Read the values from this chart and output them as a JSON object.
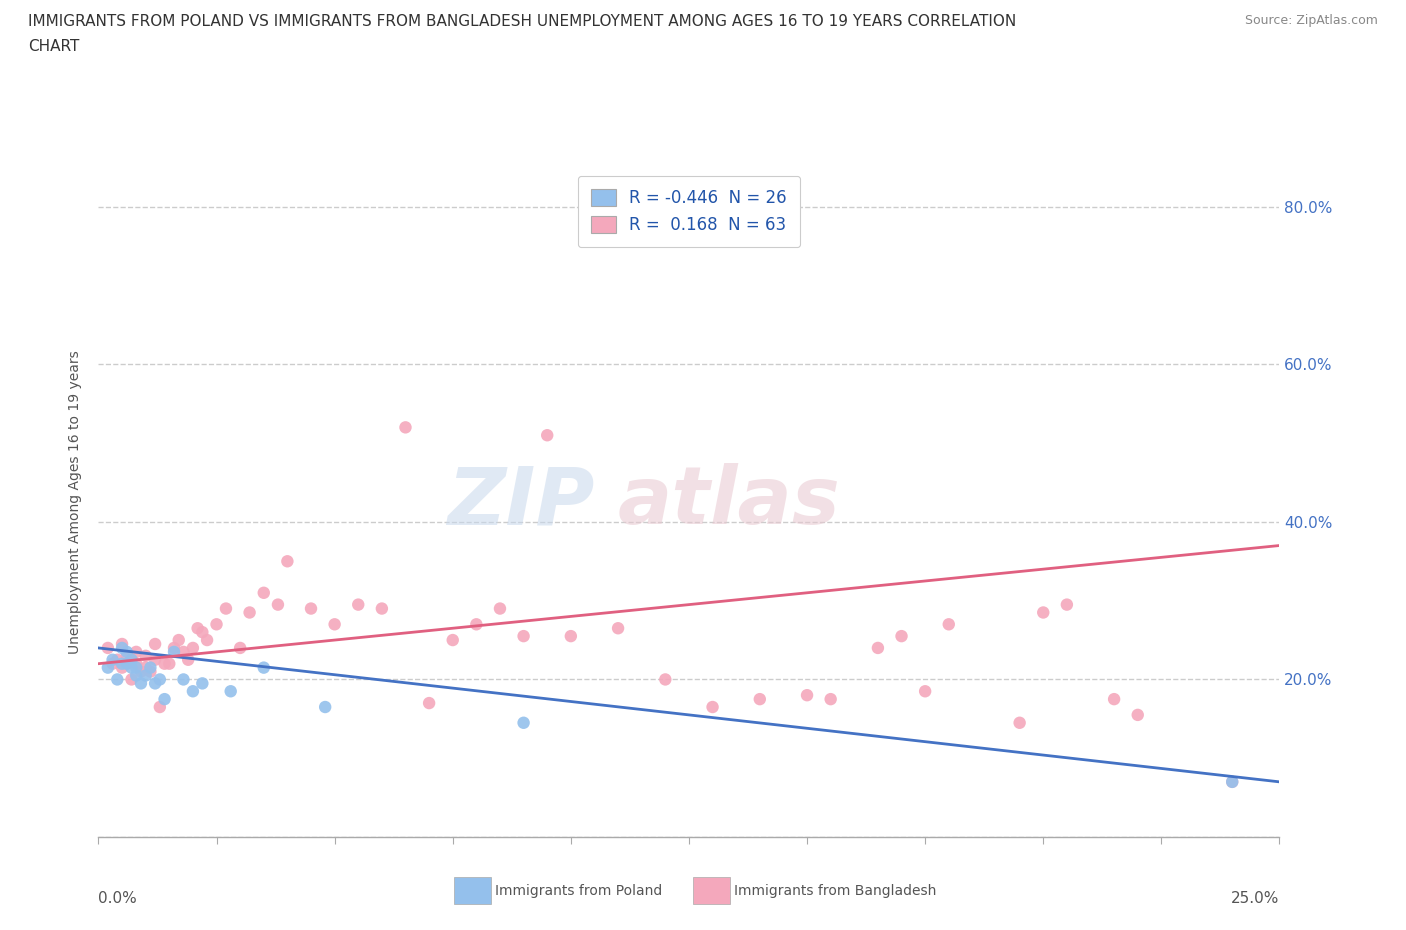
{
  "title_line1": "IMMIGRANTS FROM POLAND VS IMMIGRANTS FROM BANGLADESH UNEMPLOYMENT AMONG AGES 16 TO 19 YEARS CORRELATION",
  "title_line2": "CHART",
  "source_text": "Source: ZipAtlas.com",
  "ylabel": "Unemployment Among Ages 16 to 19 years",
  "xlim": [
    0.0,
    0.25
  ],
  "ylim": [
    0.0,
    0.85
  ],
  "xticks": [
    0.0,
    0.025,
    0.05,
    0.075,
    0.1,
    0.125,
    0.15,
    0.175,
    0.2,
    0.225,
    0.25
  ],
  "yticks": [
    0.0,
    0.2,
    0.4,
    0.6,
    0.8
  ],
  "yticklabels_right": [
    "",
    "20.0%",
    "40.0%",
    "60.0%",
    "80.0%"
  ],
  "grid_color": "#cccccc",
  "background_color": "#ffffff",
  "watermark_zip": "ZIP",
  "watermark_atlas": "atlas",
  "poland_color": "#94c0ec",
  "poland_color_line": "#4472c4",
  "bangladesh_color": "#f4a8bc",
  "bangladesh_color_line": "#e06080",
  "legend_label_poland": "R = -0.446  N = 26",
  "legend_label_bangladesh": "R =  0.168  N = 63",
  "bottom_label_poland": "Immigrants from Poland",
  "bottom_label_bangladesh": "Immigrants from Bangladesh",
  "poland_scatter_x": [
    0.002,
    0.003,
    0.004,
    0.005,
    0.005,
    0.006,
    0.006,
    0.007,
    0.007,
    0.008,
    0.008,
    0.009,
    0.01,
    0.011,
    0.012,
    0.013,
    0.014,
    0.016,
    0.018,
    0.02,
    0.022,
    0.028,
    0.035,
    0.048,
    0.09,
    0.24
  ],
  "poland_scatter_y": [
    0.215,
    0.225,
    0.2,
    0.22,
    0.24,
    0.22,
    0.235,
    0.215,
    0.225,
    0.215,
    0.205,
    0.195,
    0.205,
    0.215,
    0.195,
    0.2,
    0.175,
    0.235,
    0.2,
    0.185,
    0.195,
    0.185,
    0.215,
    0.165,
    0.145,
    0.07
  ],
  "bangladesh_scatter_x": [
    0.002,
    0.003,
    0.004,
    0.005,
    0.005,
    0.006,
    0.006,
    0.007,
    0.007,
    0.008,
    0.008,
    0.009,
    0.01,
    0.01,
    0.011,
    0.012,
    0.012,
    0.013,
    0.014,
    0.015,
    0.016,
    0.017,
    0.018,
    0.019,
    0.02,
    0.021,
    0.022,
    0.023,
    0.025,
    0.027,
    0.03,
    0.032,
    0.035,
    0.038,
    0.04,
    0.045,
    0.05,
    0.055,
    0.06,
    0.065,
    0.07,
    0.075,
    0.08,
    0.085,
    0.09,
    0.095,
    0.1,
    0.11,
    0.12,
    0.13,
    0.14,
    0.15,
    0.155,
    0.165,
    0.17,
    0.175,
    0.18,
    0.195,
    0.2,
    0.205,
    0.215,
    0.22,
    0.24
  ],
  "bangladesh_scatter_y": [
    0.24,
    0.22,
    0.225,
    0.215,
    0.245,
    0.22,
    0.23,
    0.225,
    0.2,
    0.22,
    0.235,
    0.21,
    0.23,
    0.215,
    0.21,
    0.225,
    0.245,
    0.165,
    0.22,
    0.22,
    0.24,
    0.25,
    0.235,
    0.225,
    0.24,
    0.265,
    0.26,
    0.25,
    0.27,
    0.29,
    0.24,
    0.285,
    0.31,
    0.295,
    0.35,
    0.29,
    0.27,
    0.295,
    0.29,
    0.52,
    0.17,
    0.25,
    0.27,
    0.29,
    0.255,
    0.51,
    0.255,
    0.265,
    0.2,
    0.165,
    0.175,
    0.18,
    0.175,
    0.24,
    0.255,
    0.185,
    0.27,
    0.145,
    0.285,
    0.295,
    0.175,
    0.155,
    0.07
  ]
}
